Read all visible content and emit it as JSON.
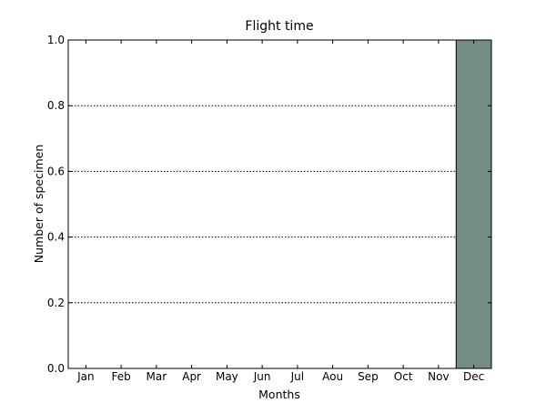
{
  "chart_data": {
    "type": "bar",
    "title": "Flight time",
    "xlabel": "Months",
    "ylabel": "Number of specimen",
    "categories": [
      "Jan",
      "Feb",
      "Mar",
      "Apr",
      "May",
      "Jun",
      "Jul",
      "Aou",
      "Sep",
      "Oct",
      "Nov",
      "Dec"
    ],
    "values": [
      0,
      0,
      0,
      0,
      0,
      0,
      0,
      0,
      0,
      0,
      0,
      1
    ],
    "ylim": [
      0,
      1
    ],
    "yticks": [
      0.0,
      0.2,
      0.4,
      0.6,
      0.8,
      1.0
    ],
    "ytick_labels": [
      "0.0",
      "0.2",
      "0.4",
      "0.6",
      "0.8",
      "1.0"
    ],
    "grid": "horizontal dotted",
    "colors": {
      "bar_fill": "#738c84",
      "bar_edge": "#000000",
      "axis": "#000000",
      "grid": "#000000"
    }
  }
}
